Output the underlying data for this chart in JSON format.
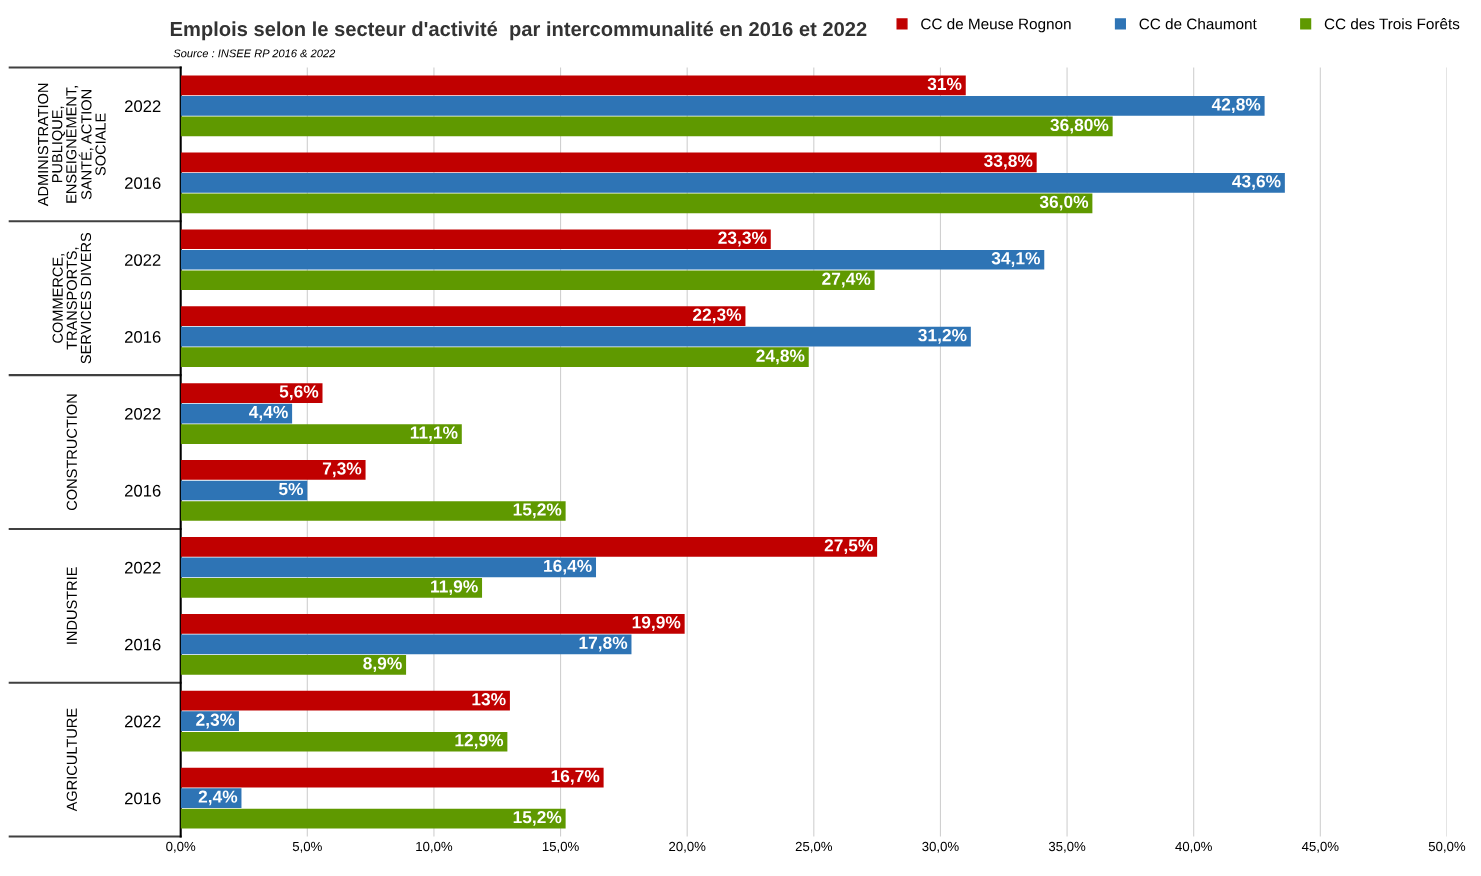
{
  "chart_data": {
    "type": "bar",
    "orientation": "horizontal",
    "title": "Emplois selon le secteur d'activité  par intercommunalité en 2016 et 2022",
    "annotations": [
      "Source : INSEE RP 2016 & 2022",
      "ADMINISTRATION\nPUBLIQUE,\nENSEIGNEMENT,\nSANTÉ, ACTION\nSOCIALE",
      "COMMERCE,\nTRANSPORTS,\nSERVICES DIVERS",
      "CONSTRUCTION",
      "INDUSTRIE",
      "AGRICULTURE"
    ],
    "categories": [
      "2022",
      "2016",
      "2022",
      "2016",
      "2022",
      "2016",
      "2022",
      "2016",
      "2022",
      "2016"
    ],
    "series": [
      {
        "name": "CC de Meuse Rognon",
        "color": "#c00000",
        "values": [
          31,
          33.8,
          23.3,
          22.3,
          5.6,
          7.3,
          27.5,
          19.9,
          13,
          16.7
        ],
        "value_labels": [
          "31%",
          "33,8%",
          "23,3%",
          "22,3%",
          "5,6%",
          "7,3%",
          "27,5%",
          "19,9%",
          "13%",
          "16,7%"
        ]
      },
      {
        "name": "CC de Chaumont",
        "color": "#2e74b5",
        "values": [
          42.8,
          43.6,
          34.1,
          31.2,
          4.4,
          5,
          16.4,
          17.8,
          2.3,
          2.4
        ],
        "value_labels": [
          "42,8%",
          "43,6%",
          "34,1%",
          "31,2%",
          "4,4%",
          "5%",
          "16,4%",
          "17,8%",
          "2,3%",
          "2,4%"
        ]
      },
      {
        "name": "CC des Trois Forêts",
        "color": "#5f9900",
        "values": [
          36.8,
          36.0,
          27.4,
          24.8,
          11.1,
          15.2,
          11.9,
          8.9,
          12.9,
          15.2
        ],
        "value_labels": [
          "36,80%",
          "36,0%",
          "27,4%",
          "24,8%",
          "11,1%",
          "15,2%",
          "11,9%",
          "8,9%",
          "12,9%",
          "15,2%"
        ]
      }
    ],
    "xlim": [
      0,
      50
    ],
    "xticks": [
      {
        "value": 0,
        "label": "0,0%"
      },
      {
        "value": 5,
        "label": "5,0%"
      },
      {
        "value": 10,
        "label": "10,0%"
      },
      {
        "value": 15,
        "label": "15,0%"
      },
      {
        "value": 20,
        "label": "20,0%"
      },
      {
        "value": 25,
        "label": "25,0%"
      },
      {
        "value": 30,
        "label": "30,0%"
      },
      {
        "value": 35,
        "label": "35,0%"
      },
      {
        "value": 40,
        "label": "40,0%"
      },
      {
        "value": 45,
        "label": "45,0%"
      },
      {
        "value": 50,
        "label": "50,0%"
      }
    ],
    "grid": "x",
    "legend": "top right"
  }
}
